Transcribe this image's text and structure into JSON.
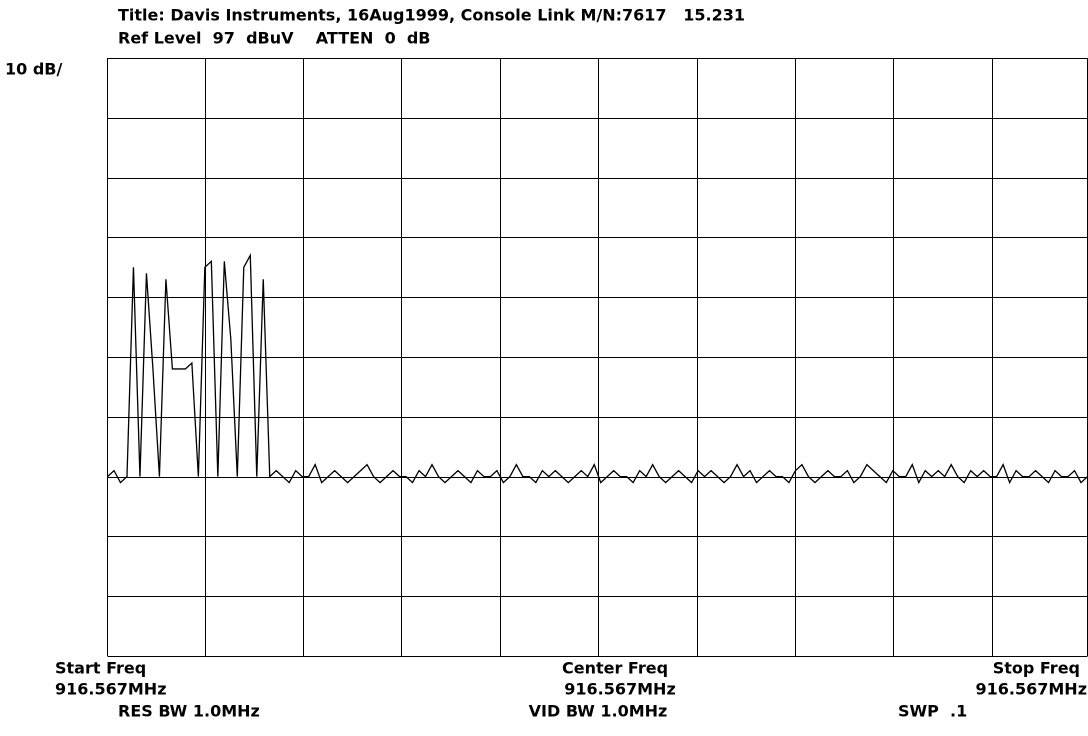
{
  "chart_data": {
    "type": "line",
    "title": "Title: Davis Instruments, 16Aug1999, Console Link M/N:7617   15.231",
    "subtitle": "Ref Level  97  dBuV    ATTEN  0  dB",
    "y_label": "10 dB/",
    "x_labels": [
      {
        "name": "Start Freq",
        "value": "916.567MHz"
      },
      {
        "name": "Center Freq",
        "value": "916.567MHz"
      },
      {
        "name": "Stop Freq",
        "value": "916.567MHz"
      }
    ],
    "footer": [
      "RES BW 1.0MHz",
      "VID BW 1.0MHz",
      "SWP  .1"
    ],
    "color": "#000000",
    "ylim": [
      -3,
      97
    ],
    "yticks": [
      -3,
      7,
      17,
      27,
      37,
      47,
      57,
      67,
      77,
      87,
      97
    ],
    "grid": true,
    "values": [
      27,
      28,
      26,
      27,
      62,
      27,
      61,
      45,
      27,
      60,
      45,
      45,
      45,
      46,
      27,
      62,
      63,
      27,
      63,
      50,
      27,
      62,
      64,
      27,
      60,
      27,
      28,
      27,
      26,
      28,
      27,
      27,
      29,
      26,
      27,
      28,
      27,
      26,
      27,
      28,
      29,
      27,
      26,
      27,
      28,
      27,
      27,
      26,
      28,
      27,
      29,
      27,
      26,
      27,
      28,
      27,
      26,
      28,
      27,
      27,
      28,
      26,
      27,
      29,
      27,
      27,
      26,
      28,
      27,
      28,
      27,
      26,
      27,
      28,
      27,
      29,
      26,
      27,
      28,
      27,
      27,
      26,
      28,
      27,
      29,
      27,
      26,
      27,
      28,
      27,
      26,
      28,
      27,
      28,
      27,
      26,
      27,
      29,
      27,
      28,
      26,
      27,
      28,
      27,
      27,
      26,
      28,
      29,
      27,
      26,
      27,
      28,
      27,
      27,
      28,
      26,
      27,
      29,
      28,
      27,
      26,
      28,
      27,
      27,
      29,
      26,
      28,
      27,
      28,
      27,
      29,
      27,
      26,
      28,
      27,
      28,
      27,
      27,
      29,
      26,
      28,
      27,
      27,
      28,
      27,
      26,
      28,
      27,
      27,
      28,
      26,
      27
    ]
  }
}
